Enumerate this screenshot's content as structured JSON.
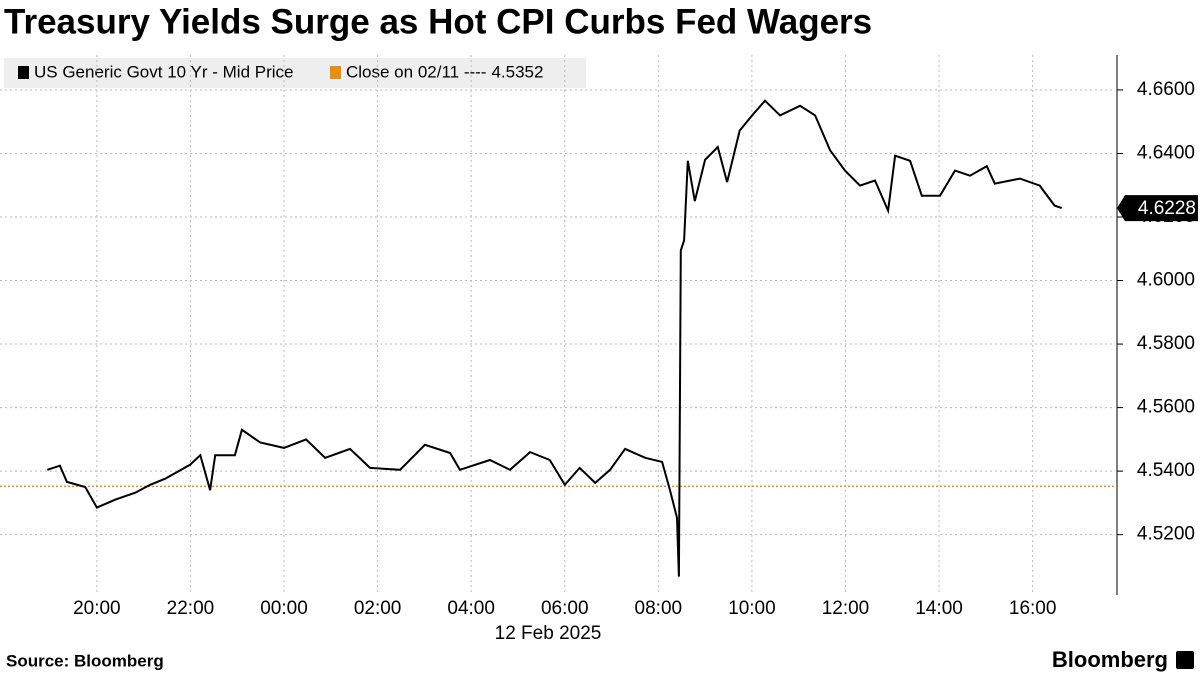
{
  "chart_data": {
    "type": "line",
    "title": "Treasury Yields Surge as Hot CPI Curbs Fed Wagers",
    "x_label": "12 Feb 2025",
    "source": "Source: Bloomberg",
    "brand": "Bloomberg",
    "x": [
      -5.06,
      -4.79,
      -4.64,
      -4.25,
      -4.0,
      -3.61,
      -3.18,
      -2.86,
      -2.54,
      -2.01,
      -1.79,
      -1.58,
      -1.47,
      -1.05,
      -0.9,
      -0.51,
      0,
      0.47,
      0.88,
      1.41,
      1.84,
      2.48,
      3.01,
      3.55,
      3.76,
      4.4,
      4.83,
      5.26,
      5.68,
      6.0,
      6.32,
      6.65,
      6.97,
      7.29,
      7.72,
      8.08,
      8.25,
      8.4,
      8.44,
      8.48,
      8.55,
      8.63,
      8.78,
      9.0,
      9.27,
      9.47,
      9.74,
      10.0,
      10.28,
      10.6,
      11.03,
      11.35,
      11.67,
      11.99,
      12.31,
      12.63,
      12.91,
      13.06,
      13.38,
      13.63,
      14.02,
      14.34,
      14.66,
      15.02,
      15.19,
      15.73,
      16.15,
      16.47,
      16.62
    ],
    "series": [
      {
        "name": "US Generic Govt 10 Yr - Mid Price",
        "color": "#000000",
        "values": [
          4.5404,
          4.5417,
          4.5366,
          4.535,
          4.5285,
          4.531,
          4.5332,
          4.5357,
          4.5376,
          4.542,
          4.545,
          4.534,
          4.545,
          4.545,
          4.553,
          4.549,
          4.5473,
          4.55,
          4.5442,
          4.547,
          4.541,
          4.5404,
          4.5483,
          4.5457,
          4.5404,
          4.5435,
          4.5404,
          4.546,
          4.5435,
          4.5357,
          4.541,
          4.5363,
          4.5404,
          4.547,
          4.5442,
          4.5429,
          4.534,
          4.5253,
          4.5068,
          4.6095,
          4.6126,
          4.6377,
          4.625,
          4.638,
          4.642,
          4.631,
          4.6472,
          4.6519,
          4.6566,
          4.652,
          4.655,
          4.652,
          4.641,
          4.6346,
          4.6299,
          4.6315,
          4.622,
          4.6393,
          4.6377,
          4.6267,
          4.6267,
          4.6346,
          4.633,
          4.636,
          4.6305,
          4.6321,
          4.6299,
          4.6236,
          4.6228
        ]
      }
    ],
    "reference_line": {
      "name": "Close on 02/11 ----",
      "value": 4.5352,
      "color": "#e8900c"
    },
    "xlim": [
      -6.07,
      17.76
    ],
    "xticks": [
      {
        "value": -4,
        "label": "20:00"
      },
      {
        "value": -2,
        "label": "22:00"
      },
      {
        "value": 0,
        "label": "00:00"
      },
      {
        "value": 2,
        "label": "02:00"
      },
      {
        "value": 4,
        "label": "04:00"
      },
      {
        "value": 6,
        "label": "06:00"
      },
      {
        "value": 8,
        "label": "08:00"
      },
      {
        "value": 10,
        "label": "10:00"
      },
      {
        "value": 12,
        "label": "12:00"
      },
      {
        "value": 14,
        "label": "14:00"
      },
      {
        "value": 16,
        "label": "16:00"
      }
    ],
    "ylim": [
      4.501,
      4.671
    ],
    "yticks": [
      {
        "value": 4.52,
        "label": "4.5200"
      },
      {
        "value": 4.54,
        "label": "4.5400"
      },
      {
        "value": 4.56,
        "label": "4.5600"
      },
      {
        "value": 4.58,
        "label": "4.5800"
      },
      {
        "value": 4.6,
        "label": "4.6000"
      },
      {
        "value": 4.62,
        "label": "4.6200"
      },
      {
        "value": 4.64,
        "label": "4.6400"
      },
      {
        "value": 4.66,
        "label": "4.6600"
      }
    ],
    "grid": true
  }
}
